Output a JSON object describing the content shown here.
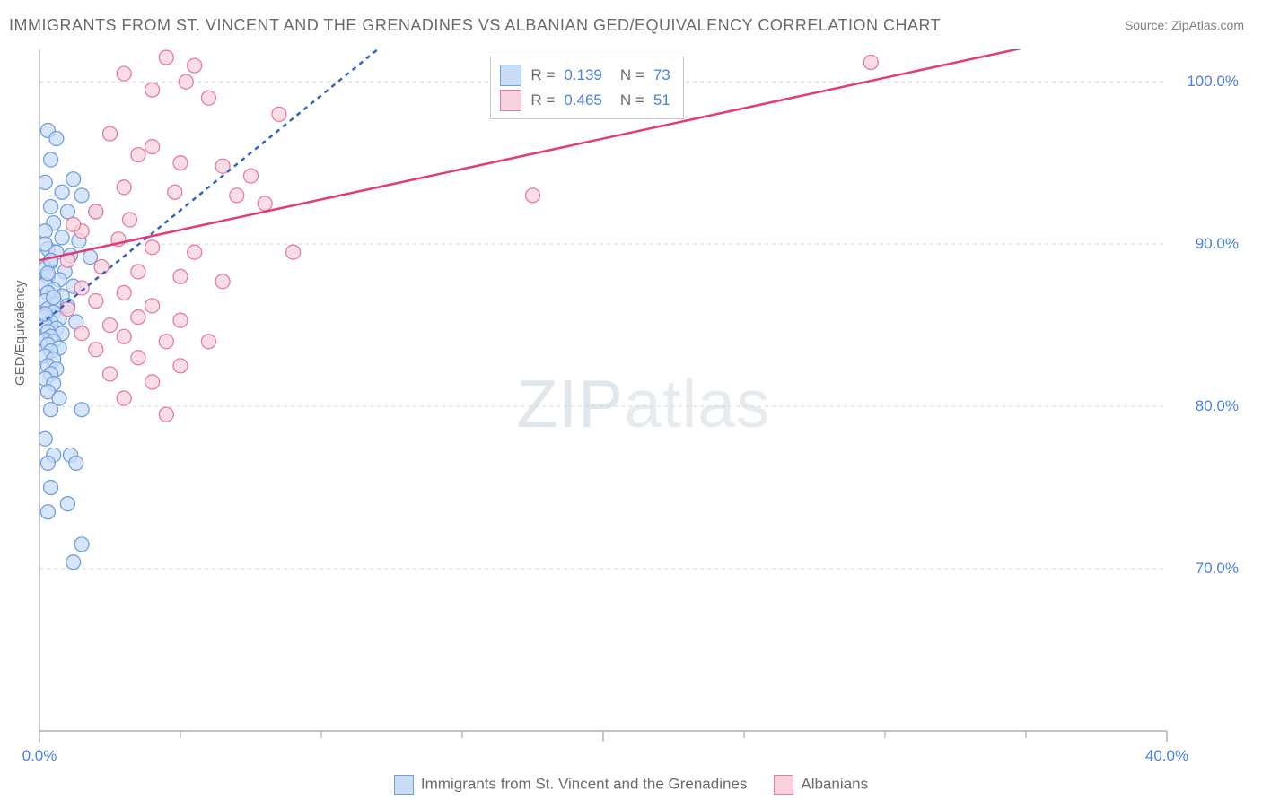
{
  "title": "IMMIGRANTS FROM ST. VINCENT AND THE GRENADINES VS ALBANIAN GED/EQUIVALENCY CORRELATION CHART",
  "source": "Source: ZipAtlas.com",
  "ylabel": "GED/Equivalency",
  "watermark_a": "ZIP",
  "watermark_b": "atlas",
  "chart": {
    "type": "scatter",
    "background_color": "#ffffff",
    "axis_color": "#9e9e9e",
    "grid_color": "#d5d5d5",
    "tick_color": "#9e9e9e",
    "tick_label_color": "#4a80e8",
    "xlim": [
      0,
      40
    ],
    "ylim": [
      60,
      102
    ],
    "xticks": [
      0,
      20,
      40
    ],
    "xtick_labels": [
      "0.0%",
      "",
      "40.0%"
    ],
    "xminor": [
      5,
      10,
      15,
      25,
      30,
      35
    ],
    "yticks": [
      70,
      80,
      90,
      100
    ],
    "ytick_labels": [
      "70.0%",
      "80.0%",
      "90.0%",
      "100.0%"
    ],
    "series": [
      {
        "id": "svg_imm",
        "label": "Immigrants from St. Vincent and the Grenadines",
        "fill": "#c9dcf5",
        "stroke": "#6f9fe0",
        "line_color": "#2f63c9",
        "line_dash": "5 5",
        "regression": {
          "pts": [
            [
              0,
              85
            ],
            [
              12,
              102
            ]
          ]
        },
        "R_label": "R  =",
        "R": "0.139",
        "N_label": "N  =",
        "N": "73",
        "points": [
          [
            0.3,
            97
          ],
          [
            0.6,
            96.5
          ],
          [
            0.4,
            95.2
          ],
          [
            1.2,
            94
          ],
          [
            0.2,
            93.8
          ],
          [
            0.8,
            93.2
          ],
          [
            1.5,
            93
          ],
          [
            0.4,
            92.3
          ],
          [
            1.0,
            92.0
          ],
          [
            2.0,
            92.0
          ],
          [
            0.5,
            91.3
          ],
          [
            0.2,
            90.8
          ],
          [
            0.8,
            90.4
          ],
          [
            1.4,
            90.2
          ],
          [
            0.3,
            89.7
          ],
          [
            0.6,
            89.5
          ],
          [
            1.1,
            89.3
          ],
          [
            1.8,
            89.2
          ],
          [
            0.4,
            88.9
          ],
          [
            0.2,
            88.5
          ],
          [
            0.9,
            88.3
          ],
          [
            0.3,
            88.0
          ],
          [
            0.7,
            87.8
          ],
          [
            0.2,
            87.5
          ],
          [
            1.2,
            87.4
          ],
          [
            0.5,
            87.2
          ],
          [
            0.3,
            87.0
          ],
          [
            0.8,
            86.8
          ],
          [
            0.2,
            86.5
          ],
          [
            0.6,
            86.3
          ],
          [
            1.0,
            86.2
          ],
          [
            0.3,
            86.0
          ],
          [
            0.5,
            85.8
          ],
          [
            0.2,
            85.5
          ],
          [
            0.7,
            85.4
          ],
          [
            0.4,
            85.2
          ],
          [
            1.3,
            85.2
          ],
          [
            0.2,
            85.0
          ],
          [
            0.6,
            84.8
          ],
          [
            0.3,
            84.6
          ],
          [
            0.8,
            84.5
          ],
          [
            0.4,
            84.3
          ],
          [
            0.2,
            84.1
          ],
          [
            0.5,
            84.0
          ],
          [
            0.3,
            83.8
          ],
          [
            0.7,
            83.6
          ],
          [
            0.4,
            83.4
          ],
          [
            0.2,
            83.1
          ],
          [
            0.5,
            82.9
          ],
          [
            0.3,
            82.5
          ],
          [
            0.6,
            82.3
          ],
          [
            0.4,
            82.0
          ],
          [
            0.2,
            81.7
          ],
          [
            0.5,
            81.4
          ],
          [
            0.3,
            80.9
          ],
          [
            0.7,
            80.5
          ],
          [
            0.4,
            79.8
          ],
          [
            1.5,
            79.8
          ],
          [
            0.2,
            78.0
          ],
          [
            0.5,
            77.0
          ],
          [
            1.1,
            77.0
          ],
          [
            0.3,
            76.5
          ],
          [
            1.3,
            76.5
          ],
          [
            0.4,
            75.0
          ],
          [
            1.0,
            74.0
          ],
          [
            0.3,
            73.5
          ],
          [
            1.5,
            71.5
          ],
          [
            1.2,
            70.4
          ],
          [
            0.2,
            90.0
          ],
          [
            0.4,
            89.0
          ],
          [
            0.3,
            88.2
          ],
          [
            0.5,
            86.7
          ],
          [
            0.2,
            85.7
          ]
        ]
      },
      {
        "id": "alb",
        "label": "Albanians",
        "fill": "#f7d2dc",
        "stroke": "#e77ca0",
        "line_color": "#e23b77",
        "line_dash": "",
        "regression": {
          "pts": [
            [
              0,
              89
            ],
            [
              40,
              104
            ]
          ]
        },
        "R_label": "R  =",
        "R": "0.465",
        "N_label": "N  =",
        "N": "51",
        "points": [
          [
            4.5,
            101.5
          ],
          [
            5.5,
            101.0
          ],
          [
            3.0,
            100.5
          ],
          [
            5.2,
            100.0
          ],
          [
            4.0,
            99.5
          ],
          [
            6.0,
            99.0
          ],
          [
            8.5,
            98.0
          ],
          [
            2.5,
            96.8
          ],
          [
            4.0,
            96.0
          ],
          [
            3.5,
            95.5
          ],
          [
            5.0,
            95.0
          ],
          [
            6.5,
            94.8
          ],
          [
            7.5,
            94.2
          ],
          [
            3.0,
            93.5
          ],
          [
            4.8,
            93.2
          ],
          [
            7.0,
            93.0
          ],
          [
            8.0,
            92.5
          ],
          [
            17.5,
            93.0
          ],
          [
            29.5,
            101.2
          ],
          [
            2.0,
            92.0
          ],
          [
            3.2,
            91.5
          ],
          [
            1.5,
            90.8
          ],
          [
            2.8,
            90.3
          ],
          [
            4.0,
            89.8
          ],
          [
            5.5,
            89.5
          ],
          [
            9.0,
            89.5
          ],
          [
            1.0,
            89.0
          ],
          [
            2.2,
            88.6
          ],
          [
            3.5,
            88.3
          ],
          [
            5.0,
            88.0
          ],
          [
            6.5,
            87.7
          ],
          [
            1.5,
            87.3
          ],
          [
            3.0,
            87.0
          ],
          [
            2.0,
            86.5
          ],
          [
            4.0,
            86.2
          ],
          [
            1.0,
            86.0
          ],
          [
            3.5,
            85.5
          ],
          [
            5.0,
            85.3
          ],
          [
            2.5,
            85.0
          ],
          [
            1.5,
            84.5
          ],
          [
            3.0,
            84.3
          ],
          [
            4.5,
            84.0
          ],
          [
            6.0,
            84.0
          ],
          [
            2.0,
            83.5
          ],
          [
            3.5,
            83.0
          ],
          [
            5.0,
            82.5
          ],
          [
            2.5,
            82.0
          ],
          [
            4.0,
            81.5
          ],
          [
            3.0,
            80.5
          ],
          [
            4.5,
            79.5
          ],
          [
            1.2,
            91.2
          ]
        ]
      }
    ]
  },
  "bottom_legend": [
    {
      "label": "Immigrants from St. Vincent and the Grenadines",
      "fill": "#c9dcf5",
      "stroke": "#6f9fe0"
    },
    {
      "label": "Albanians",
      "fill": "#f7d2dc",
      "stroke": "#e77ca0"
    }
  ]
}
